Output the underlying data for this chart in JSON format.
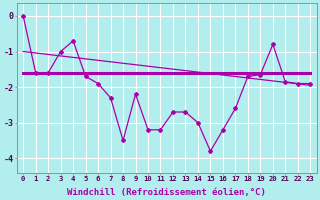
{
  "x": [
    0,
    1,
    2,
    3,
    4,
    5,
    6,
    7,
    8,
    9,
    10,
    11,
    12,
    13,
    14,
    15,
    16,
    17,
    18,
    19,
    20,
    21,
    22,
    23
  ],
  "y_zigzag": [
    0.0,
    -1.6,
    -1.6,
    -1.0,
    -0.7,
    -1.7,
    -1.9,
    -2.3,
    -3.5,
    -2.2,
    -3.2,
    -3.2,
    -2.7,
    -2.7,
    -3.0,
    -3.8,
    -3.2,
    -2.6,
    -1.7,
    -1.65,
    -0.8,
    -1.85,
    -1.9,
    -1.9
  ],
  "y_flat": [
    -1.6,
    -1.6,
    -1.6,
    -1.6,
    -1.6,
    -1.6,
    -1.6,
    -1.6,
    -1.6,
    -1.6,
    -1.6,
    -1.6,
    -1.6,
    -1.6,
    -1.6,
    -1.6,
    -1.6,
    -1.6,
    -1.6,
    -1.6,
    -1.6,
    -1.6,
    -1.6,
    -1.6
  ],
  "y_trend_x": [
    0,
    23
  ],
  "y_trend_y": [
    -1.0,
    -1.95
  ],
  "line_color": "#aa00aa",
  "bg_color": "#b2eeee",
  "grid_color": "#ffffff",
  "xlabel": "Windchill (Refroidissement éolien,°C)",
  "ylim": [
    -4.4,
    0.35
  ],
  "xlim": [
    -0.5,
    23.5
  ],
  "yticks": [
    0,
    -1,
    -2,
    -3,
    -4
  ],
  "xticks": [
    0,
    1,
    2,
    3,
    4,
    5,
    6,
    7,
    8,
    9,
    10,
    11,
    12,
    13,
    14,
    15,
    16,
    17,
    18,
    19,
    20,
    21,
    22,
    23
  ]
}
